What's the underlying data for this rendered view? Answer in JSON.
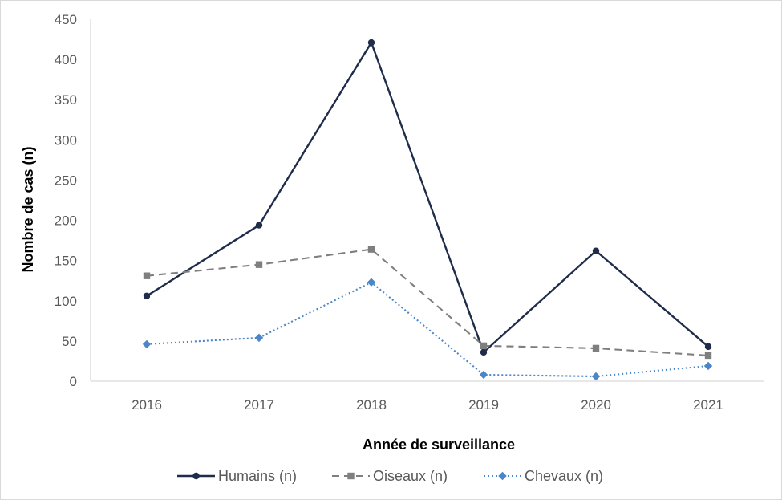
{
  "chart_data": {
    "type": "line",
    "title": "",
    "xlabel": "Année de surveillance",
    "ylabel": "Nombre de cas (n)",
    "categories": [
      "2016",
      "2017",
      "2018",
      "2019",
      "2020",
      "2021"
    ],
    "yticks": [
      "0",
      "50",
      "100",
      "150",
      "200",
      "250",
      "300",
      "350",
      "400",
      "450"
    ],
    "ylim": [
      0,
      450
    ],
    "grid": false,
    "legend_position": "bottom",
    "series": [
      {
        "name": "Humains (n)",
        "values": [
          106,
          194,
          421,
          36,
          162,
          43
        ],
        "color": "#1f2d4a",
        "line_style": "solid",
        "marker": "circle"
      },
      {
        "name": "Oiseaux (n)",
        "values": [
          131,
          145,
          164,
          44,
          41,
          32
        ],
        "color": "#7f7f7f",
        "line_style": "dashed",
        "marker": "square"
      },
      {
        "name": "Chevaux (n)",
        "values": [
          46,
          54,
          123,
          8,
          6,
          19
        ],
        "color": "#4a86c8",
        "line_style": "dotted",
        "marker": "diamond"
      }
    ]
  }
}
